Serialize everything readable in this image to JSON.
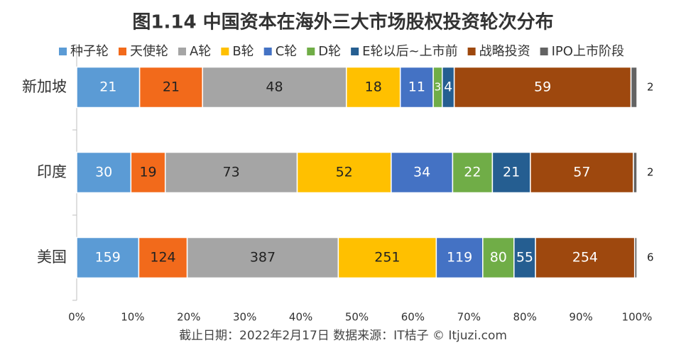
{
  "chart_data": {
    "type": "bar",
    "orientation": "horizontal",
    "stacking": "percent",
    "title": "图1.14  中国资本在海外三大市场股权投资轮次分布",
    "footer": "截止日期：2022年2月17日    数据来源：IT桔子 © Itjuzi.com",
    "categories": [
      "新加坡",
      "印度",
      "美国"
    ],
    "series": [
      {
        "name": "种子轮",
        "color": "#5b9bd5",
        "label_color": "#ffffff",
        "values": [
          21,
          30,
          159
        ]
      },
      {
        "name": "天使轮",
        "color": "#f26a1b",
        "label_color": "#222222",
        "values": [
          21,
          19,
          124
        ]
      },
      {
        "name": "A轮",
        "color": "#a5a5a5",
        "label_color": "#222222",
        "values": [
          48,
          73,
          387
        ]
      },
      {
        "name": "B轮",
        "color": "#ffc000",
        "label_color": "#222222",
        "values": [
          18,
          52,
          251
        ]
      },
      {
        "name": "C轮",
        "color": "#4472c4",
        "label_color": "#ffffff",
        "values": [
          11,
          34,
          119
        ]
      },
      {
        "name": "D轮",
        "color": "#70ad47",
        "label_color": "#ffffff",
        "values": [
          3,
          22,
          80
        ]
      },
      {
        "name": "E轮以后~上市前",
        "color": "#255e91",
        "label_color": "#ffffff",
        "values": [
          4,
          21,
          55
        ]
      },
      {
        "name": "战略投资",
        "color": "#9e480e",
        "label_color": "#ffffff",
        "values": [
          59,
          57,
          254
        ]
      },
      {
        "name": "IPO上市阶段",
        "color": "#636363",
        "label_color": "#222222",
        "label_position": "outside",
        "values": [
          2,
          2,
          6
        ]
      }
    ],
    "xlim": [
      0,
      100
    ],
    "xticks": [
      {
        "value": 0,
        "label": "0%"
      },
      {
        "value": 10,
        "label": "10%"
      },
      {
        "value": 20,
        "label": "20%"
      },
      {
        "value": 30,
        "label": "30%"
      },
      {
        "value": 40,
        "label": "40%"
      },
      {
        "value": 50,
        "label": "50%"
      },
      {
        "value": 60,
        "label": "60%"
      },
      {
        "value": 70,
        "label": "70%"
      },
      {
        "value": 80,
        "label": "80%"
      },
      {
        "value": 90,
        "label": "90%"
      },
      {
        "value": 100,
        "label": "100%"
      }
    ],
    "legend": "top",
    "grid": false
  }
}
